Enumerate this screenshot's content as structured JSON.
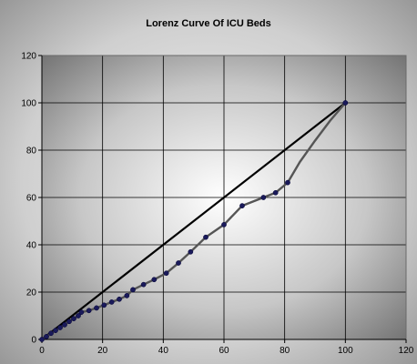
{
  "chart_data": {
    "type": "line",
    "title": "Lorenz Curve Of ICU Beds",
    "xlabel": "",
    "ylabel": "",
    "xlim": [
      0,
      120
    ],
    "ylim": [
      0,
      120
    ],
    "x_ticks": [
      "0",
      "20",
      "40",
      "60",
      "80",
      "100",
      "120"
    ],
    "y_ticks": [
      "0",
      "20",
      "40",
      "60",
      "80",
      "100",
      "120"
    ],
    "grid": true,
    "legend": "none",
    "series": [
      {
        "values": [
          [
            0,
            0
          ],
          [
            1.5,
            1.2
          ],
          [
            3,
            2.6
          ],
          [
            4.5,
            3.8
          ],
          [
            6,
            5
          ],
          [
            7.5,
            6.2
          ],
          [
            9,
            7.6
          ],
          [
            10.5,
            8.8
          ],
          [
            12,
            10
          ],
          [
            13,
            11.5
          ],
          [
            15.5,
            12.2
          ],
          [
            18,
            13.3
          ],
          [
            20.5,
            14.5
          ],
          [
            23,
            15.8
          ],
          [
            25.5,
            17
          ],
          [
            28,
            18.5
          ],
          [
            30,
            21
          ],
          [
            33.5,
            23.2
          ],
          [
            37,
            25.3
          ],
          [
            41,
            28
          ],
          [
            45,
            32.3
          ],
          [
            49,
            37
          ],
          [
            54,
            43.2
          ],
          [
            60,
            48.5
          ],
          [
            66,
            56.5
          ],
          [
            73,
            60
          ],
          [
            77,
            62
          ],
          [
            81,
            66.3
          ],
          [
            85,
            75
          ],
          [
            90,
            84
          ],
          [
            95,
            92.5
          ],
          [
            100,
            100
          ]
        ],
        "color": "#555555"
      },
      {
        "values": [
          [
            0,
            0
          ],
          [
            100,
            100
          ]
        ],
        "color": "#000000"
      }
    ],
    "marker_color": "#1a1a5a",
    "plot_background": "gradient-grey"
  }
}
